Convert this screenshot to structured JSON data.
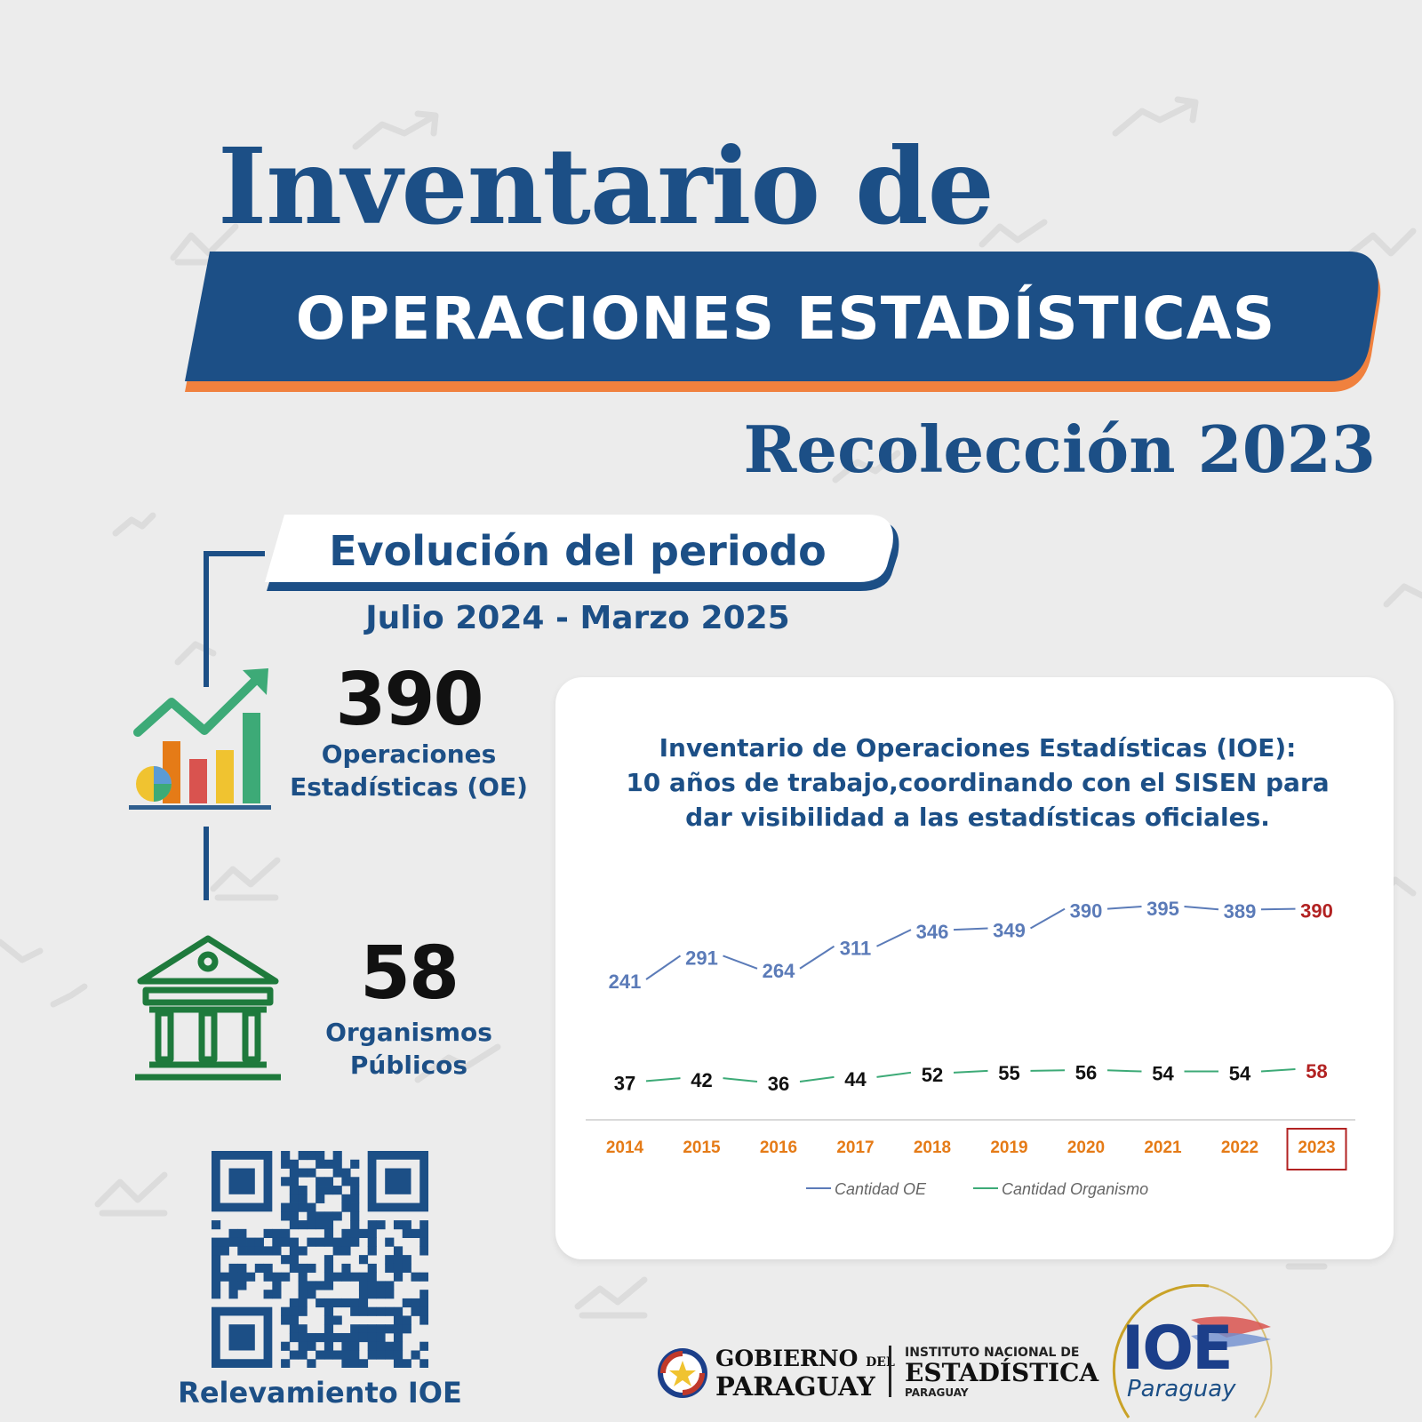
{
  "header": {
    "title_line1": "Inventario de",
    "title_banner": "OPERACIONES ESTADÍSTICAS",
    "title_line3": "Recolección 2023"
  },
  "evolution": {
    "heading": "Evolución del periodo",
    "period": "Julio 2024 - Marzo 2025"
  },
  "stats": [
    {
      "value": "390",
      "label_line1": "Operaciones",
      "label_line2": "Estadísticas (OE)",
      "icon": "growth-chart-icon"
    },
    {
      "value": "58",
      "label_line1": "Organismos",
      "label_line2": "Públicos",
      "icon": "government-building-icon"
    }
  ],
  "qr": {
    "caption": "Relevamiento IOE",
    "icon": "qr-code-icon"
  },
  "footer": {
    "gov_line1": "GOBIERNO",
    "gov_small": "DEL",
    "gov_line2": "PARAGUAY",
    "ine_line1": "INSTITUTO NACIONAL DE",
    "ine_line2": "ESTADÍSTICA",
    "ine_line3": "PARAGUAY",
    "ioe_logo": "IOE",
    "ioe_sub": "Paraguay"
  },
  "colors": {
    "navy": "#1c4f86",
    "accent_orange": "#f0813e",
    "oe_series": "#5b7bb8",
    "org_series": "#3daa77",
    "highlight": "#b22222",
    "year_label": "#e57b17"
  },
  "chart_data": {
    "type": "line",
    "title_lines": [
      "Inventario de Operaciones Estadísticas (IOE):",
      "10 años de trabajo,coordinando con el SISEN para",
      "dar visibilidad a las estadísticas oficiales."
    ],
    "categories": [
      "2014",
      "2015",
      "2016",
      "2017",
      "2018",
      "2019",
      "2020",
      "2021",
      "2022",
      "2023"
    ],
    "series": [
      {
        "name": "Cantidad OE",
        "values": [
          241,
          291,
          264,
          311,
          346,
          349,
          390,
          395,
          389,
          390
        ]
      },
      {
        "name": "Cantidad Organismo",
        "values": [
          37,
          42,
          36,
          44,
          52,
          55,
          56,
          54,
          54,
          58
        ]
      }
    ],
    "highlight_category": "2023",
    "legend_position": "bottom",
    "grid": false
  }
}
